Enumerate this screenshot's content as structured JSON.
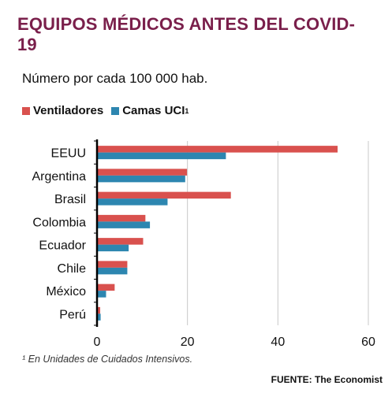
{
  "title": "EQUIPOS MÉDICOS ANTES DEL COVID-19",
  "subtitle": "Número por cada 100 000 hab.",
  "footnote": "¹ En Unidades de Cuidados Intensivos.",
  "source": "FUENTE: The Economist",
  "colors": {
    "title": "#7a1f4b",
    "ventiladores": "#d9514e",
    "camas": "#2d86b0",
    "grid": "#c8c8c8"
  },
  "chart_data": {
    "type": "bar",
    "orientation": "horizontal",
    "categories": [
      "EEUU",
      "Argentina",
      "Brasil",
      "Colombia",
      "Ecuador",
      "Chile",
      "México",
      "Perú"
    ],
    "series": [
      {
        "name": "Ventiladores",
        "legend_sup": "",
        "values": [
          53.2,
          19.9,
          29.6,
          10.7,
          10.2,
          6.7,
          3.9,
          0.7
        ]
      },
      {
        "name": "Camas UCI",
        "legend_sup": "1",
        "values": [
          28.5,
          19.5,
          15.6,
          11.7,
          7.0,
          6.7,
          2.0,
          0.8
        ]
      }
    ],
    "xlim": [
      0,
      60
    ],
    "xticks": [
      "0",
      "20",
      "40",
      "60"
    ],
    "grid": true,
    "legend_position": "top-left"
  }
}
